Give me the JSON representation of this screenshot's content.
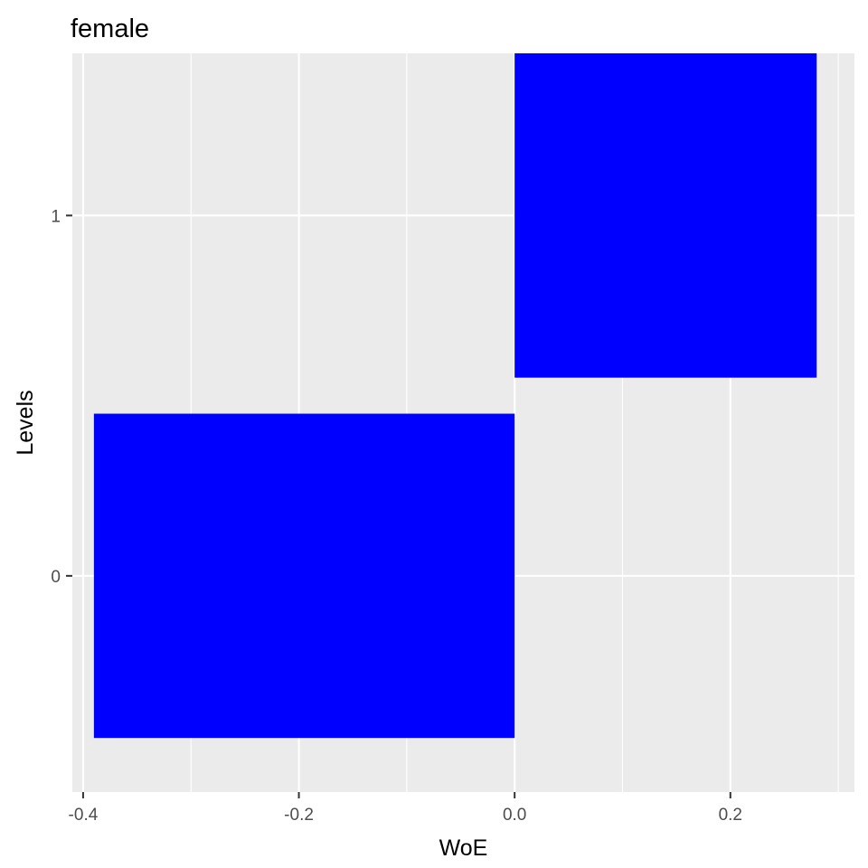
{
  "chart_data": {
    "type": "bar",
    "orientation": "horizontal",
    "title": "female",
    "xlabel": "WoE",
    "ylabel": "Levels",
    "categories": [
      "0",
      "1"
    ],
    "values": [
      -0.39,
      0.28
    ],
    "xlim": [
      -0.41,
      0.315
    ],
    "ylim": [
      -0.6,
      1.45
    ],
    "x_ticks": [
      -0.4,
      -0.2,
      0.0,
      0.2
    ],
    "x_tick_labels": [
      "-0.4",
      "-0.2",
      "0.0",
      "0.2"
    ],
    "y_tick_labels": [
      "0",
      "1"
    ],
    "bar_color": "#0000ff",
    "panel_background": "#ebebeb",
    "grid_color": "#ffffff",
    "grid": true,
    "legend": "none"
  }
}
